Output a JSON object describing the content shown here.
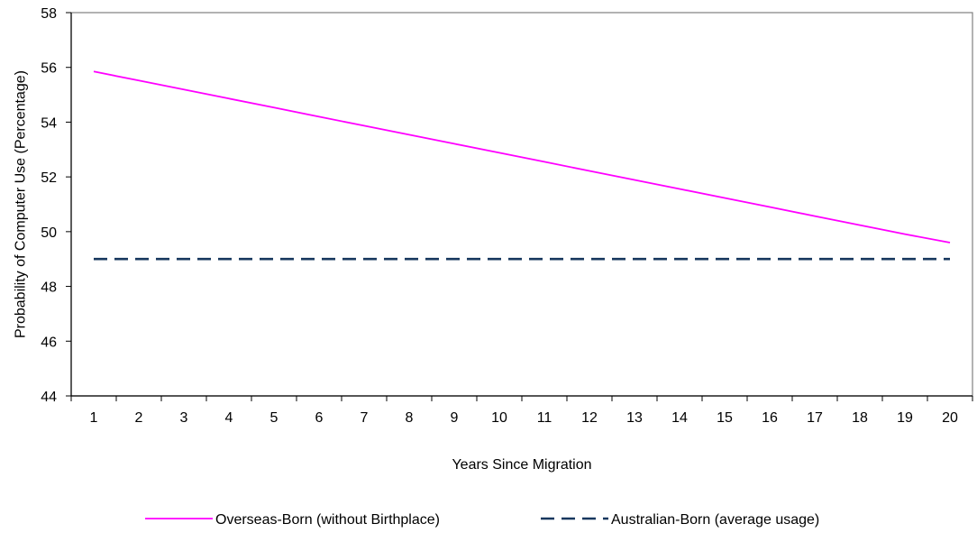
{
  "chart_data": {
    "type": "line",
    "title": "",
    "xlabel": "Years Since Migration",
    "ylabel": "Probability of Computer Use (Percentage)",
    "categories": [
      "1",
      "2",
      "3",
      "4",
      "5",
      "6",
      "7",
      "8",
      "9",
      "10",
      "11",
      "12",
      "13",
      "14",
      "15",
      "16",
      "17",
      "18",
      "19",
      "20"
    ],
    "ylim": [
      44,
      58
    ],
    "yticks": [
      44,
      46,
      48,
      50,
      52,
      54,
      56,
      58
    ],
    "grid": false,
    "legend_position": "bottom",
    "series": [
      {
        "name": "Overseas-Born (without Birthplace)",
        "color": "#ff00ff",
        "dash": "solid",
        "values": [
          55.85,
          55.52,
          55.19,
          54.86,
          54.53,
          54.2,
          53.87,
          53.54,
          53.21,
          52.88,
          52.55,
          52.22,
          51.89,
          51.56,
          51.23,
          50.9,
          50.57,
          50.24,
          49.91,
          49.6
        ]
      },
      {
        "name": "Australian-Born (average usage)",
        "color": "#17375e",
        "dash": "dashed",
        "values": [
          49.0,
          49.0,
          49.0,
          49.0,
          49.0,
          49.0,
          49.0,
          49.0,
          49.0,
          49.0,
          49.0,
          49.0,
          49.0,
          49.0,
          49.0,
          49.0,
          49.0,
          49.0,
          49.0,
          49.0
        ]
      }
    ]
  }
}
